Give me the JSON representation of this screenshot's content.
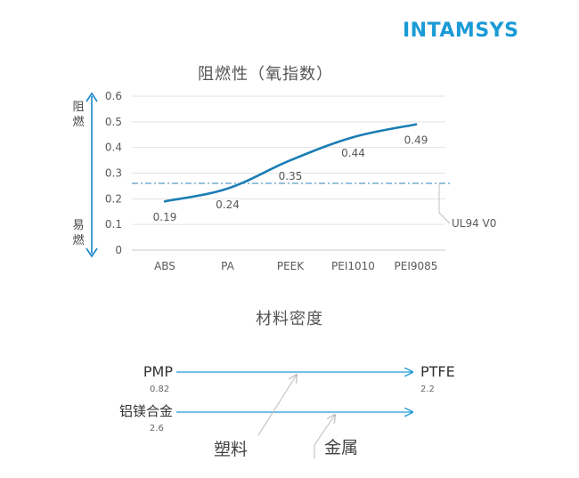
{
  "brand": {
    "logo_text": "INTAMSYS",
    "logo_color": "#1a9ad6"
  },
  "chart_data": [
    {
      "type": "line",
      "title": "阻燃性（氧指数）",
      "categories": [
        "ABS",
        "PA",
        "PEEK",
        "PEI1010",
        "PEI9085"
      ],
      "series": [
        {
          "values": [
            0.19,
            0.24,
            0.35,
            0.44,
            0.49
          ],
          "color": "#1a7db5"
        }
      ],
      "data_labels": [
        "0.19",
        "0.24",
        "0.35",
        "0.44",
        "0.49"
      ],
      "ylim": [
        0,
        0.6
      ],
      "yticks": [
        0,
        0.1,
        0.2,
        0.3,
        0.4,
        0.5,
        0.6
      ],
      "ytick_labels": [
        "0",
        "0.1",
        "0.2",
        "0.3",
        "0.4",
        "0.5",
        "0.6"
      ],
      "reference_line": {
        "value": 0.26,
        "label": "UL94 V0",
        "style": "dash-dot",
        "color": "#2a7fb8"
      },
      "y_axis_annotation": {
        "top": "阻燃",
        "bottom": "易燃",
        "color": "#1a86c8"
      },
      "grid": true
    },
    {
      "type": "other",
      "title": "材料密度",
      "arrows": [
        {
          "start_label": "PMP",
          "start_value": "0.82",
          "end_label": "PTFE",
          "end_value": "2.2"
        },
        {
          "start_label": "铝镁合金",
          "start_value": "2.6",
          "end_label": "",
          "end_value": ""
        }
      ],
      "callouts": [
        "塑料",
        "金属"
      ],
      "arrow_color": "#1f9ad6"
    }
  ]
}
